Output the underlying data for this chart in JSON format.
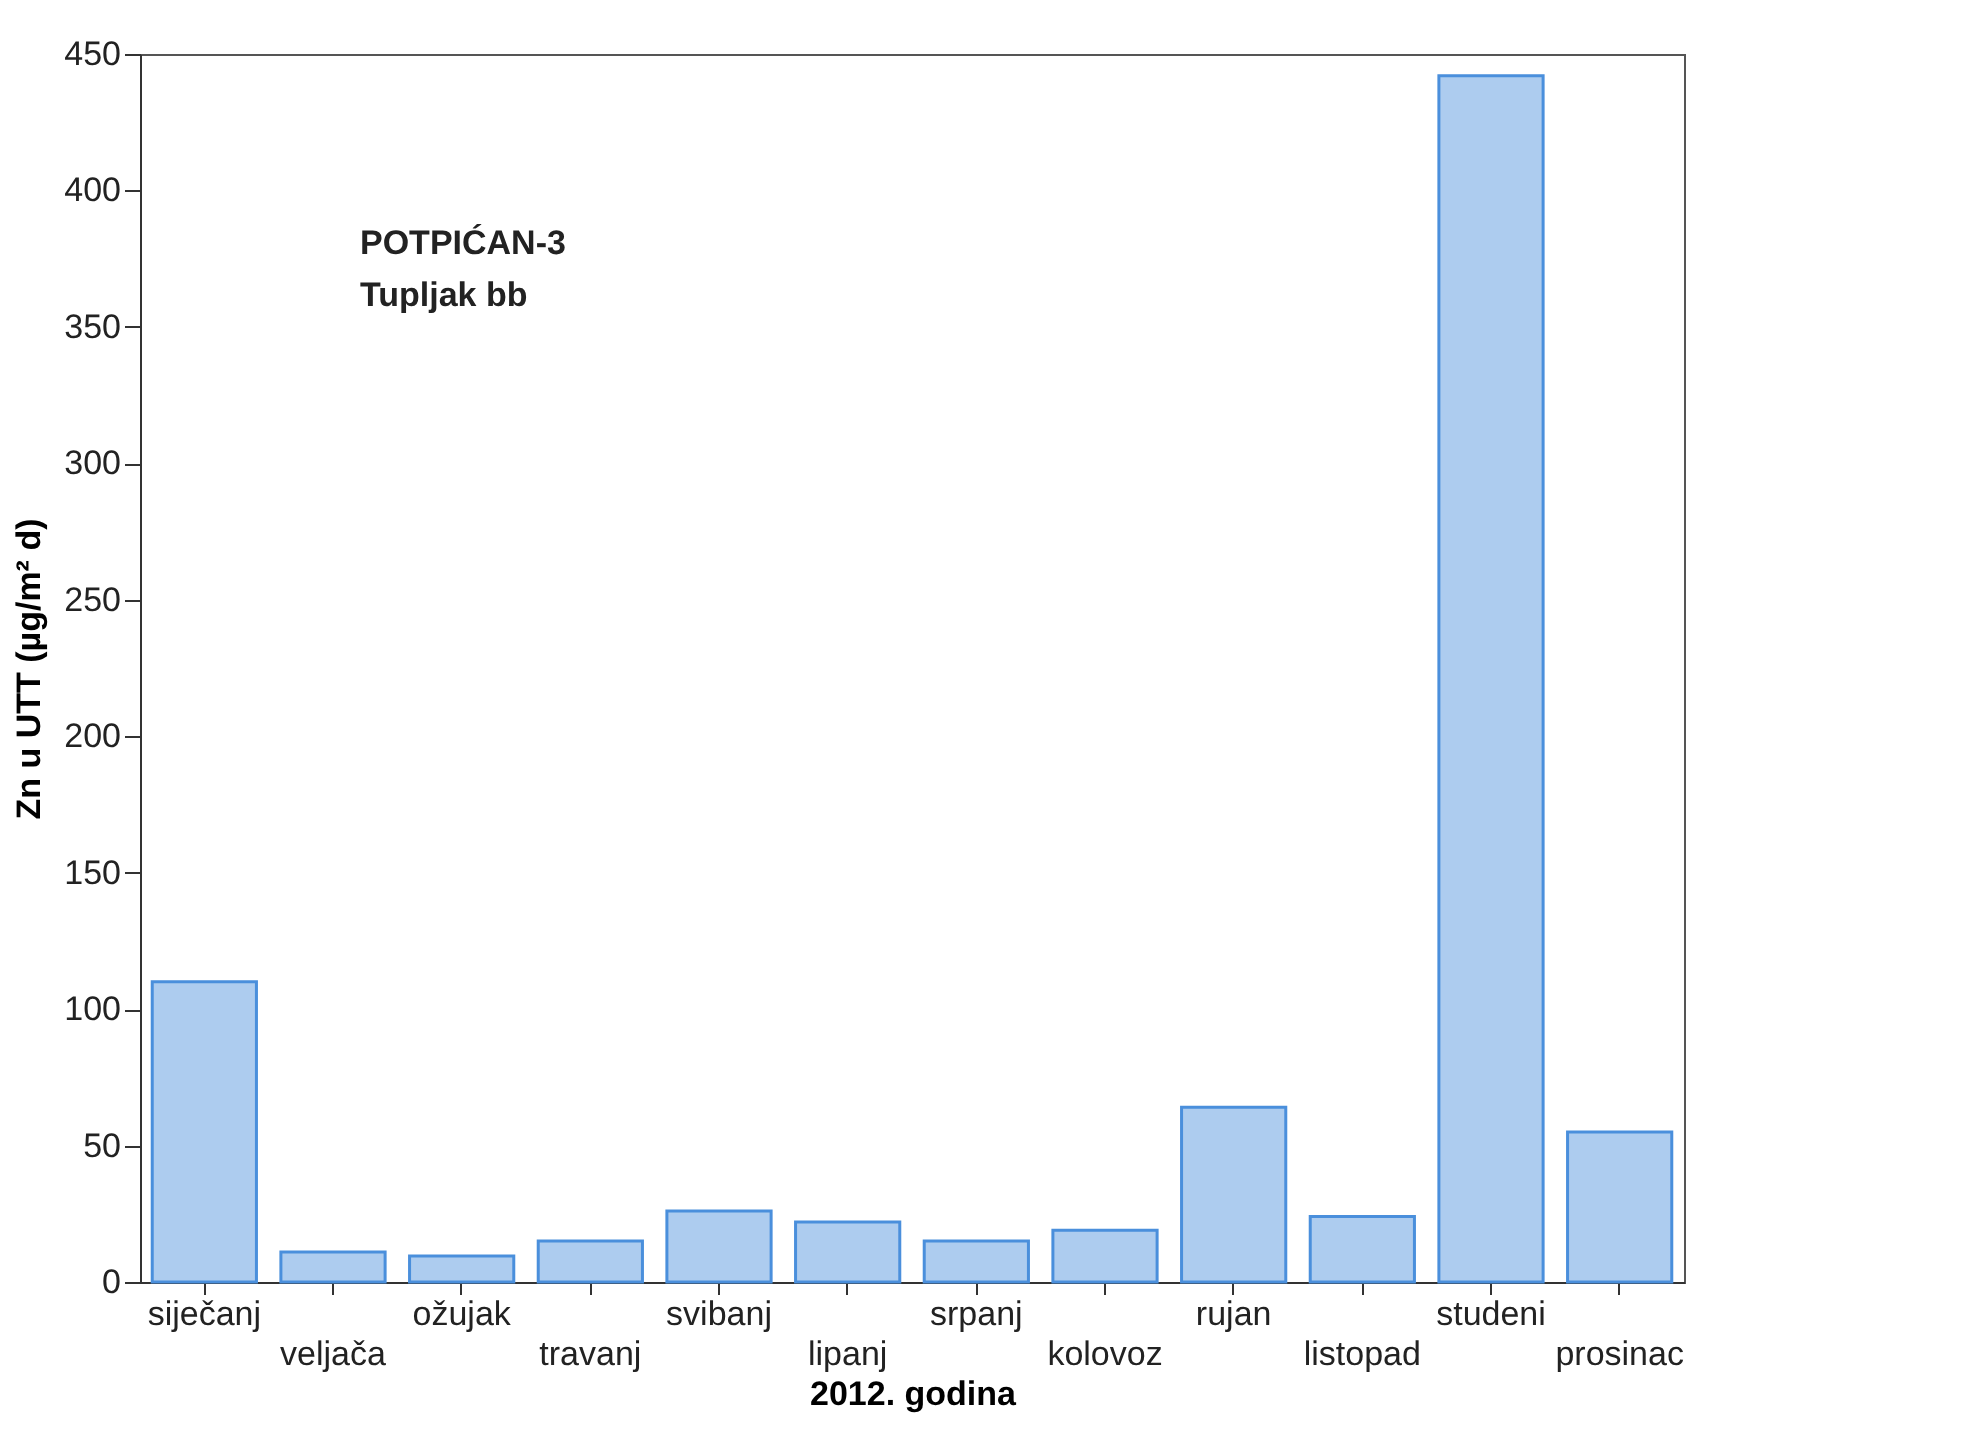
{
  "chart_data": {
    "type": "bar",
    "xlabel": "2012. godina",
    "ylabel": "Zn u UTT (µg/m² d)",
    "annotations": [
      "POTPIĆAN-3",
      "Tupljak bb"
    ],
    "categories": [
      "siječanj",
      "veljača",
      "ožujak",
      "travanj",
      "svibanj",
      "lipanj",
      "srpanj",
      "kolovoz",
      "rujan",
      "listopad",
      "studeni",
      "prosinac"
    ],
    "values": [
      110,
      11,
      9.5,
      15,
      26,
      22,
      15,
      19,
      64,
      24,
      442,
      55
    ],
    "color": "#4a8fdc",
    "ylim": [
      0,
      450
    ],
    "yticks": [
      0,
      50,
      100,
      150,
      200,
      250,
      300,
      350,
      400,
      450
    ],
    "grid": false
  }
}
